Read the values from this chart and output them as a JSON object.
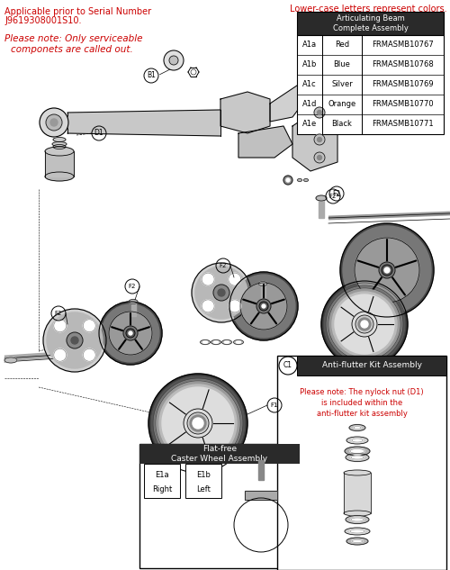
{
  "title_top_left_line1": "Applicable prior to Serial Number",
  "title_top_left_line2": "J9619308001S10.",
  "note_line1": "Please note: Only serviceable",
  "note_line2": "componets are called out.",
  "top_right_note": "Lower-case letters represent colors.",
  "table_title": "Articulating Beam\nComplete Assembly",
  "table_rows": [
    [
      "A1a",
      "Red",
      "FRMASMB10767"
    ],
    [
      "A1b",
      "Blue",
      "FRMASMB10768"
    ],
    [
      "A1c",
      "Silver",
      "FRMASMB10769"
    ],
    [
      "A1d",
      "Orange",
      "FRMASMB10770"
    ],
    [
      "A1e",
      "Black",
      "FRMASMB10771"
    ]
  ],
  "antiflutter_label": "C1",
  "antiflutter_title": "Anti-flutter Kit Assembly",
  "antiflutter_note_line1": "Please note: The nylock nut (D1)",
  "antiflutter_note_line2": "is included within the",
  "antiflutter_note_line3": "anti-flutter kit assembly",
  "flatfree_title": "Flat-free\nCaster Wheel Assembly",
  "flatfree_e1a": "E1a",
  "flatfree_e1a_sub": "Right",
  "flatfree_e1b": "E1b",
  "flatfree_e1b_sub": "Left",
  "label_b1": "B1",
  "label_d1": "D1",
  "label_f1": "F1",
  "label_f2": "F2",
  "bg_color": "#ffffff",
  "red_color": "#cc0000",
  "black_color": "#000000",
  "table_header_bg": "#2a2a2a",
  "gray_part": "#aaaaaa",
  "light_gray": "#dddddd",
  "dark_gray": "#555555",
  "mid_gray": "#888888"
}
